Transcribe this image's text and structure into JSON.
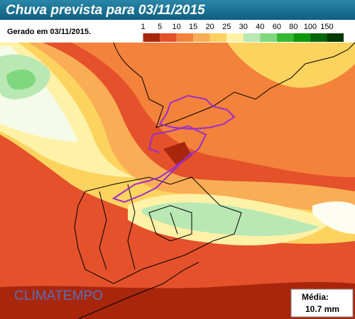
{
  "header": {
    "title": "Chuva prevista para 03/11/2015",
    "generated": "Gerado em 03/11/2015."
  },
  "legend": {
    "labels": [
      "1",
      "5",
      "10",
      "15",
      "20",
      "25",
      "30",
      "40",
      "60",
      "80",
      "100",
      "150"
    ],
    "colors": [
      "#ffffff",
      "#a8260c",
      "#e4512b",
      "#f3823b",
      "#f9ad55",
      "#fdd35f",
      "#fff1a6",
      "#b9e8b4",
      "#7fd87d",
      "#34b834",
      "#0c980c",
      "#03660a",
      "#023a06"
    ]
  },
  "brand": "CLIMATEMPO",
  "average": {
    "label": "Média:",
    "value": "10.7 mm"
  }
}
